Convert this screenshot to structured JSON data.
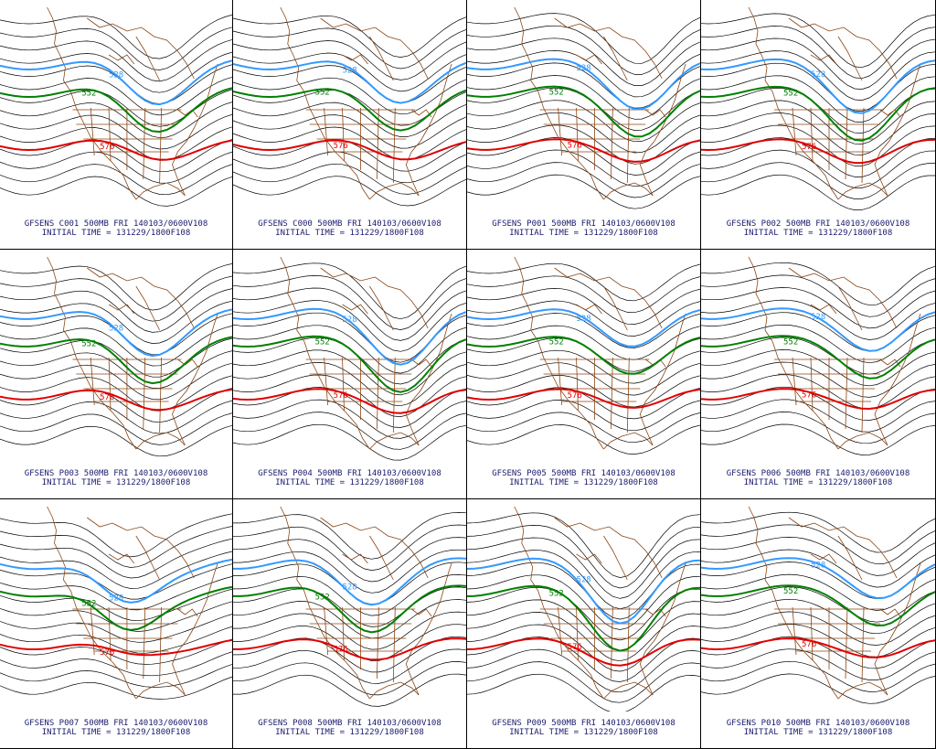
{
  "colors": {
    "border": "#000000",
    "coast": "#8b4513",
    "height_contour": "#000000",
    "contour_528": "#3399ff",
    "contour_552": "#008000",
    "contour_576": "#e00000",
    "caption_text": "#1a1a6e"
  },
  "panels": [
    {
      "member": "GFSENS C001 500MB FRI 140103/0600V108",
      "init": "INITIAL TIME = 131229/1800F108",
      "labels": [
        "528",
        "552",
        "576"
      ]
    },
    {
      "member": "GFSENS C000 500MB FRI 140103/0600V108",
      "init": "INITIAL TIME = 131229/1800F108",
      "labels": [
        "528",
        "552",
        "576"
      ]
    },
    {
      "member": "GFSENS P001 500MB FRI 140103/0600V108",
      "init": "INITIAL TIME = 131229/1800F108",
      "labels": [
        "528",
        "552",
        "576"
      ]
    },
    {
      "member": "GFSENS P002 500MB FRI 140103/0600V108",
      "init": "INITIAL TIME = 131229/1800F108",
      "labels": [
        "528",
        "552",
        "576"
      ]
    },
    {
      "member": "GFSENS P003 500MB FRI 140103/0600V108",
      "init": "INITIAL TIME = 131229/1800F108",
      "labels": [
        "528",
        "552",
        "576"
      ]
    },
    {
      "member": "GFSENS P004 500MB FRI 140103/0600V108",
      "init": "INITIAL TIME = 131229/1800F108",
      "labels": [
        "528",
        "552",
        "576"
      ]
    },
    {
      "member": "GFSENS P005 500MB FRI 140103/0600V108",
      "init": "INITIAL TIME = 131229/1800F108",
      "labels": [
        "528",
        "552",
        "576"
      ]
    },
    {
      "member": "GFSENS P006 500MB FRI 140103/0600V108",
      "init": "INITIAL TIME = 131229/1800F108",
      "labels": [
        "528",
        "552",
        "576"
      ]
    },
    {
      "member": "GFSENS P007 500MB FRI 140103/0600V108",
      "init": "INITIAL TIME = 131229/1800F108",
      "labels": [
        "528",
        "552",
        "576"
      ]
    },
    {
      "member": "GFSENS P008 500MB FRI 140103/0600V108",
      "init": "INITIAL TIME = 131229/1800F108",
      "labels": [
        "528",
        "552",
        "576"
      ]
    },
    {
      "member": "GFSENS P009 500MB FRI 140103/0600V108",
      "init": "INITIAL TIME = 131229/1800F108",
      "labels": [
        "528",
        "552",
        "576"
      ]
    },
    {
      "member": "GFSENS P010 500MB FRI 140103/0600V108",
      "init": "INITIAL TIME = 131229/1800F108",
      "labels": [
        "528",
        "552",
        "576"
      ]
    }
  ]
}
